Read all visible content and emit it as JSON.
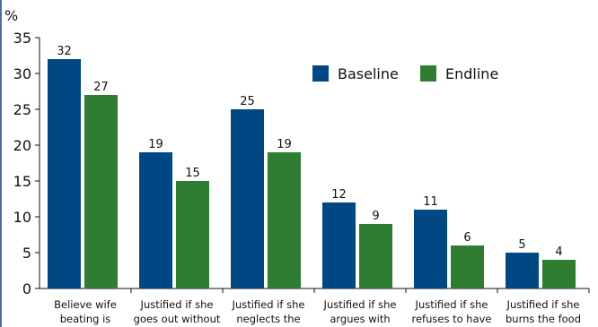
{
  "chart_data": {
    "type": "bar",
    "ylabel": "%",
    "ylim": [
      0,
      35
    ],
    "yticks": [
      0,
      5,
      10,
      15,
      20,
      25,
      30,
      35
    ],
    "categories": [
      [
        "Believe wife",
        "beating is"
      ],
      [
        "Justified if she",
        "goes out without"
      ],
      [
        "Justified if she",
        "neglects the"
      ],
      [
        "Justified if she",
        "argues with"
      ],
      [
        "Justified if she",
        "refuses to have"
      ],
      [
        "Justified if she",
        "burns the food"
      ]
    ],
    "series": [
      {
        "name": "Baseline",
        "color": "#004884",
        "values": [
          32,
          19,
          25,
          12,
          11,
          5
        ]
      },
      {
        "name": "Endline",
        "color": "#2e7d32",
        "values": [
          27,
          15,
          19,
          9,
          6,
          4
        ]
      }
    ],
    "legend": "top-right",
    "grid": false
  }
}
